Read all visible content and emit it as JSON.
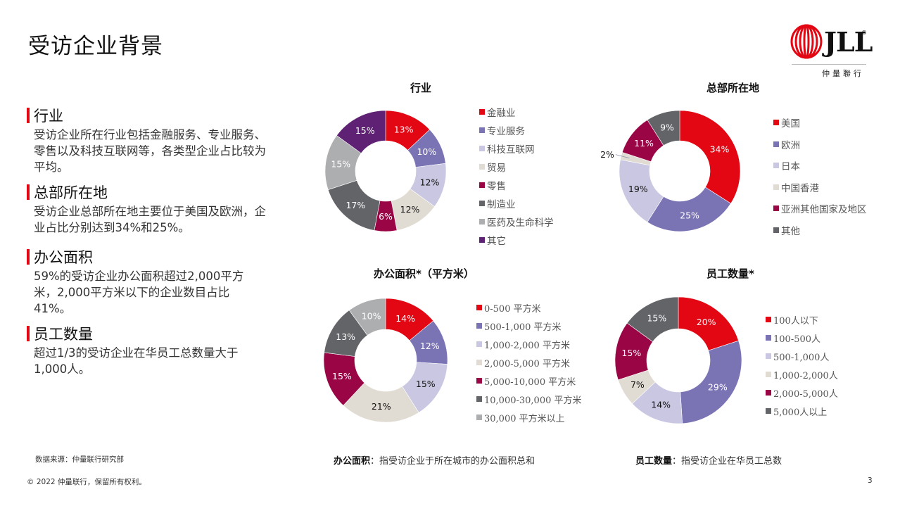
{
  "page": {
    "title": "受访企业背景",
    "page_number": "3",
    "source": "数据来源：仲量联行研究部",
    "copyright": "© 2022 仲量联行，保留所有权利。"
  },
  "logo": {
    "wordmark": "JLL",
    "registered": "®",
    "chinese_name": "仲量聯行",
    "brand_color": "#E30613"
  },
  "sections": [
    {
      "title": "行业",
      "body": "受访企业所在行业包括金融服务、专业服务、零售以及科技互联网等，各类型企业占比较为平均。"
    },
    {
      "title": "总部所在地",
      "body": "受访企业总部所在地主要位于美国及欧洲，企业占比分别达到34%和25%。"
    },
    {
      "title": "办公面积",
      "body": "59%的受访企业办公面积超过2,000平方米，2,000平方米以下的企业数目占比41%。"
    },
    {
      "title": "员工数量",
      "body": "超过1/3的受访企业在华员工总数量大于1,000人。"
    }
  ],
  "notes": [
    {
      "label": "办公面积",
      "text": "：指受访企业于所在城市的办公面积总和"
    },
    {
      "label": "员工数量",
      "text": "：指受访企业在华员工总数"
    }
  ],
  "colors": {
    "red": "#E30613",
    "lavender": "#7B74B4",
    "light_lavender": "#CAC7E2",
    "beige": "#E1DCD3",
    "wine": "#990545",
    "dark_grey": "#636468",
    "grey": "#ADAEB0",
    "purple": "#5E2173"
  },
  "chart_data": [
    {
      "type": "pie",
      "subtype": "donut",
      "title": "行业",
      "categories": [
        "金融业",
        "专业服务",
        "科技互联网",
        "贸易",
        "零售",
        "制造业",
        "医药及生命科学",
        "其它"
      ],
      "values": [
        13,
        10,
        12,
        12,
        6,
        17,
        15,
        15
      ],
      "labels": [
        "13%",
        "10%",
        "12%",
        "12%",
        "6%",
        "17%",
        "15%",
        "15%"
      ],
      "colors": [
        "#E30613",
        "#7B74B4",
        "#CAC7E2",
        "#E1DCD3",
        "#990545",
        "#636468",
        "#ADAEB0",
        "#5E2173"
      ],
      "label_colors": [
        "#fff",
        "#fff",
        "#111",
        "#111",
        "#fff",
        "#fff",
        "#fff",
        "#fff"
      ],
      "legend_position": "right"
    },
    {
      "type": "pie",
      "subtype": "donut",
      "title": "总部所在地",
      "categories": [
        "美国",
        "欧洲",
        "日本",
        "中国香港",
        "亚洲其他国家及地区",
        "其他"
      ],
      "values": [
        34,
        25,
        19,
        2,
        11,
        9
      ],
      "labels": [
        "34%",
        "25%",
        "19%",
        "2%",
        "11%",
        "9%"
      ],
      "colors": [
        "#E30613",
        "#7B74B4",
        "#CAC7E2",
        "#E1DCD3",
        "#990545",
        "#636468"
      ],
      "label_colors": [
        "#fff",
        "#fff",
        "#111",
        "#111",
        "#fff",
        "#fff"
      ],
      "outside_labels": [
        3
      ],
      "legend_position": "right"
    },
    {
      "type": "pie",
      "subtype": "donut",
      "title": "办公面积*（平方米）",
      "categories": [
        "0-500 平方米",
        "500-1,000 平方米",
        "1,000-2,000 平方米",
        "2,000-5,000 平方米",
        "5,000-10,000 平方米",
        "10,000-30,000 平方米",
        "30,000 平方米以上"
      ],
      "values": [
        14,
        12,
        15,
        21,
        15,
        13,
        10
      ],
      "labels": [
        "14%",
        "12%",
        "15%",
        "21%",
        "15%",
        "13%",
        "10%"
      ],
      "colors": [
        "#E30613",
        "#7B74B4",
        "#CAC7E2",
        "#E1DCD3",
        "#990545",
        "#636468",
        "#ADAEB0"
      ],
      "label_colors": [
        "#fff",
        "#fff",
        "#111",
        "#111",
        "#fff",
        "#fff",
        "#fff"
      ],
      "legend_position": "right"
    },
    {
      "type": "pie",
      "subtype": "donut",
      "title": "员工数量*",
      "categories": [
        "100人以下",
        "100-500人",
        "500-1,000人",
        "1,000-2,000人",
        "2,000-5,000人",
        "5,000人以上"
      ],
      "values": [
        20,
        29,
        14,
        7,
        15,
        15
      ],
      "labels": [
        "20%",
        "29%",
        "14%",
        "7%",
        "15%",
        "15%"
      ],
      "colors": [
        "#E30613",
        "#7B74B4",
        "#CAC7E2",
        "#E1DCD3",
        "#990545",
        "#636468"
      ],
      "label_colors": [
        "#fff",
        "#fff",
        "#111",
        "#111",
        "#fff",
        "#fff"
      ],
      "legend_position": "right"
    }
  ]
}
